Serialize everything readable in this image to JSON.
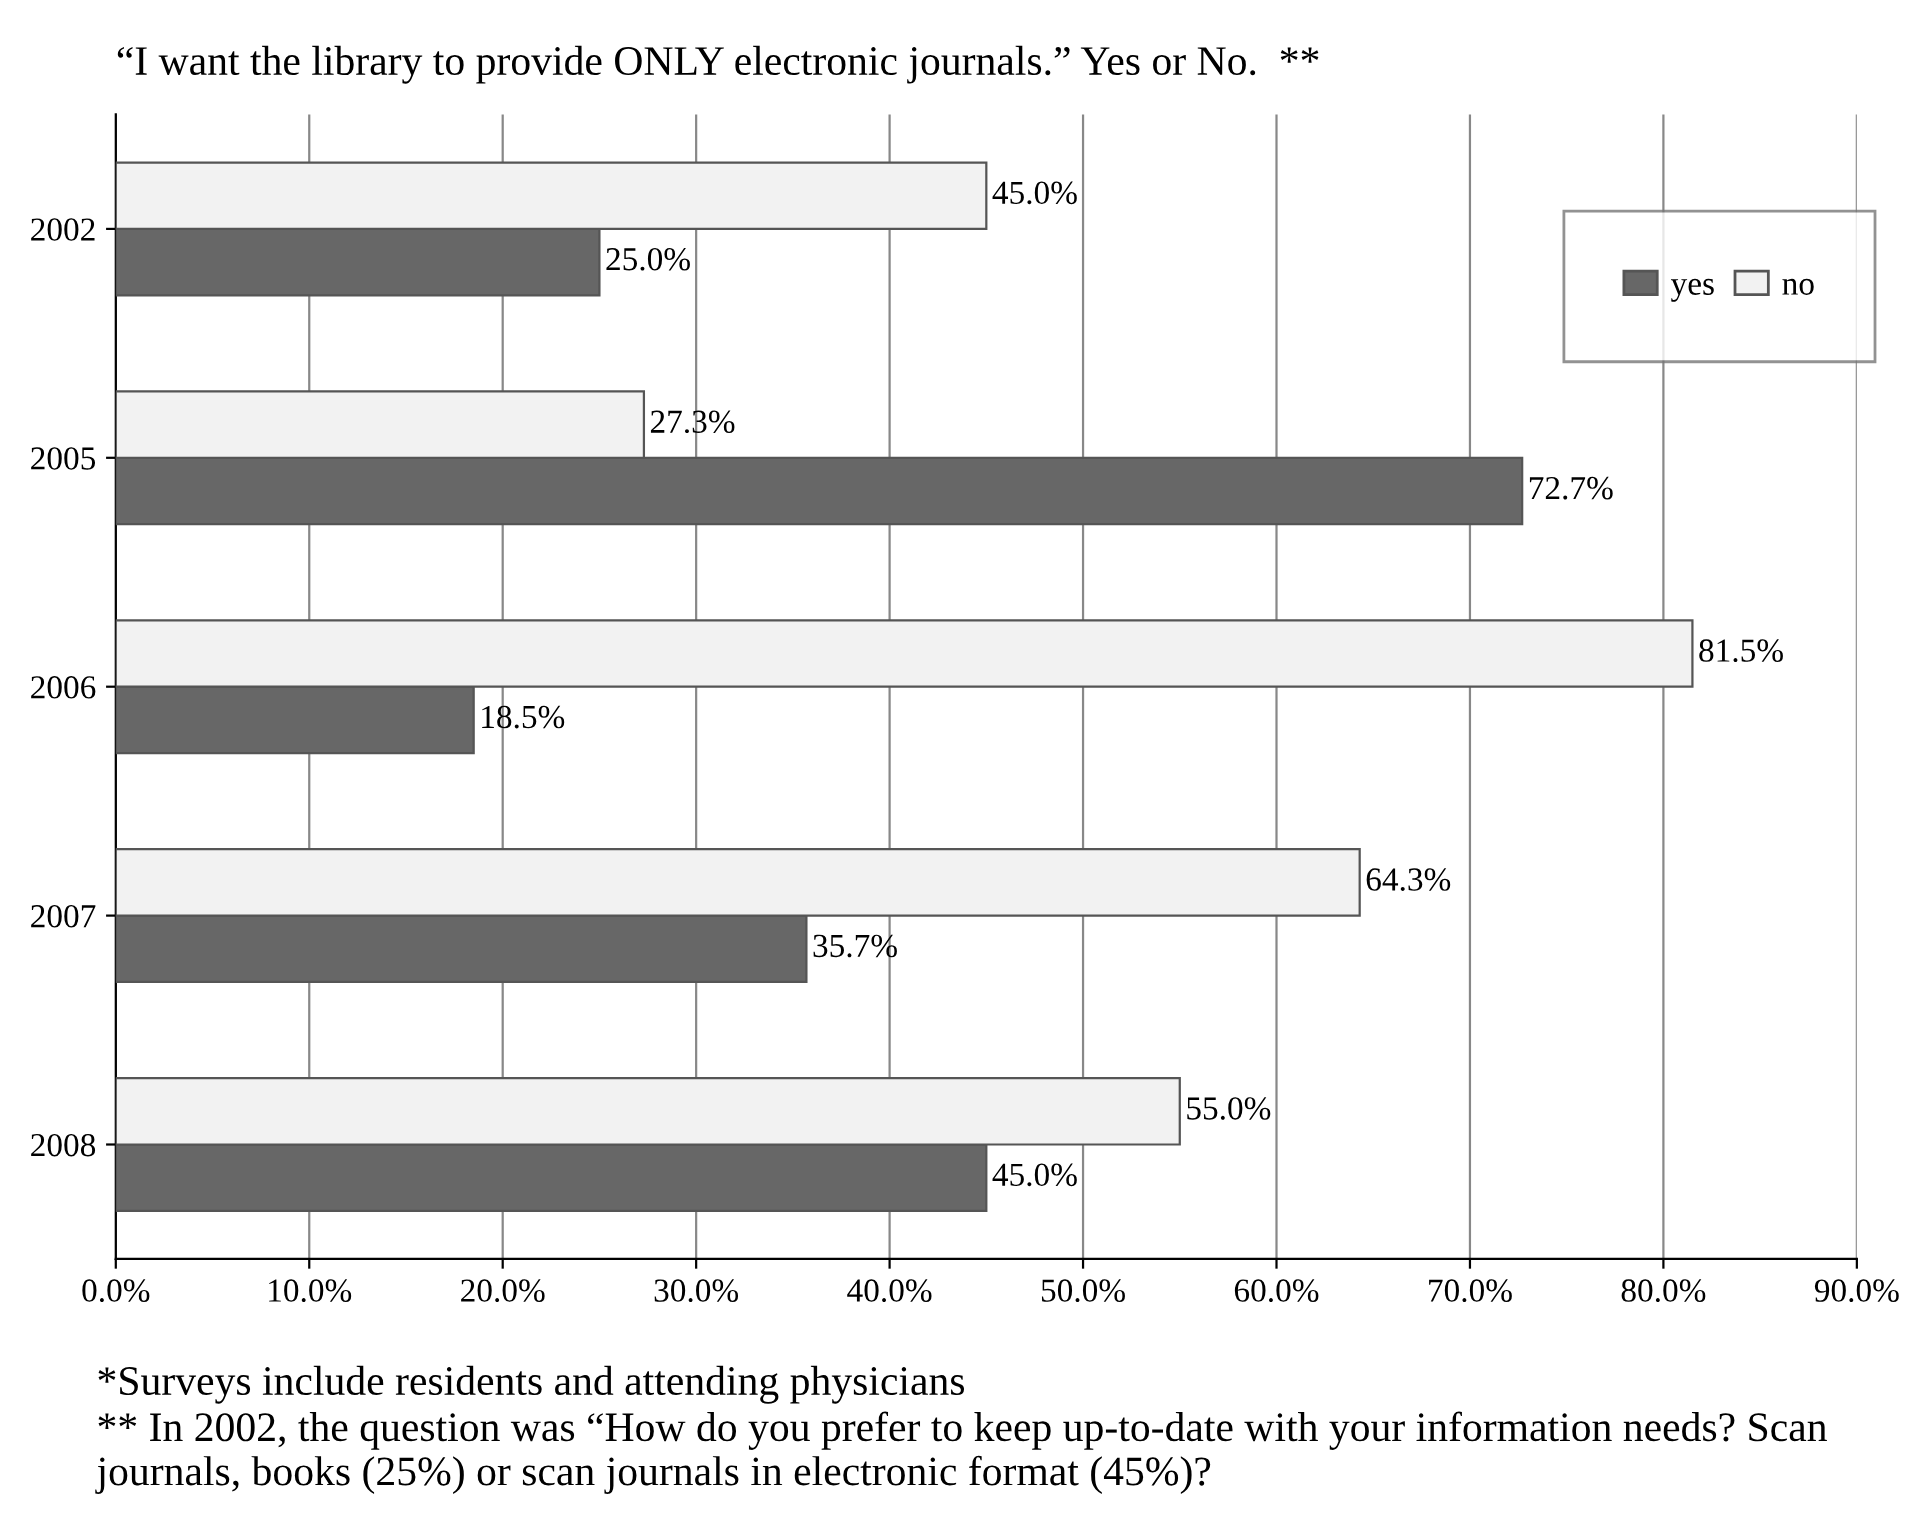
{
  "chart_data": {
    "type": "bar",
    "orientation": "horizontal",
    "title": "“I want the library to provide ONLY electronic journals.” Yes or No.  **",
    "categories": [
      "2002",
      "2005",
      "2006",
      "2007",
      "2008"
    ],
    "series": [
      {
        "name": "yes",
        "color": "#676767",
        "values": [
          25.0,
          72.7,
          18.5,
          35.7,
          45.0
        ],
        "value_labels": [
          "25.0%",
          "72.7%",
          "18.5%",
          "35.7%",
          "45.0%"
        ]
      },
      {
        "name": "no",
        "color": "#f2f2f2",
        "values": [
          45.0,
          27.3,
          81.5,
          64.3,
          55.0
        ],
        "value_labels": [
          "45.0%",
          "27.3%",
          "81.5%",
          "64.3%",
          "55.0%"
        ]
      }
    ],
    "xlim": [
      0,
      90
    ],
    "xticks": [
      {
        "value": 0,
        "label": "0.0%"
      },
      {
        "value": 10,
        "label": "10.0%"
      },
      {
        "value": 20,
        "label": "20.0%"
      },
      {
        "value": 30,
        "label": "30.0%"
      },
      {
        "value": 40,
        "label": "40.0%"
      },
      {
        "value": 50,
        "label": "50.0%"
      },
      {
        "value": 60,
        "label": "60.0%"
      },
      {
        "value": 70,
        "label": "70.0%"
      },
      {
        "value": 80,
        "label": "80.0%"
      },
      {
        "value": 90,
        "label": "90.0%"
      }
    ],
    "grid": "x",
    "legend": "top right",
    "annotations": [
      "*Surveys include residents and attending physicians",
      "** In 2002, the question was “How do you prefer to keep up-to-date with your information needs? Scan journals, books (25%) or scan journals in electronic format (45%)?"
    ]
  }
}
